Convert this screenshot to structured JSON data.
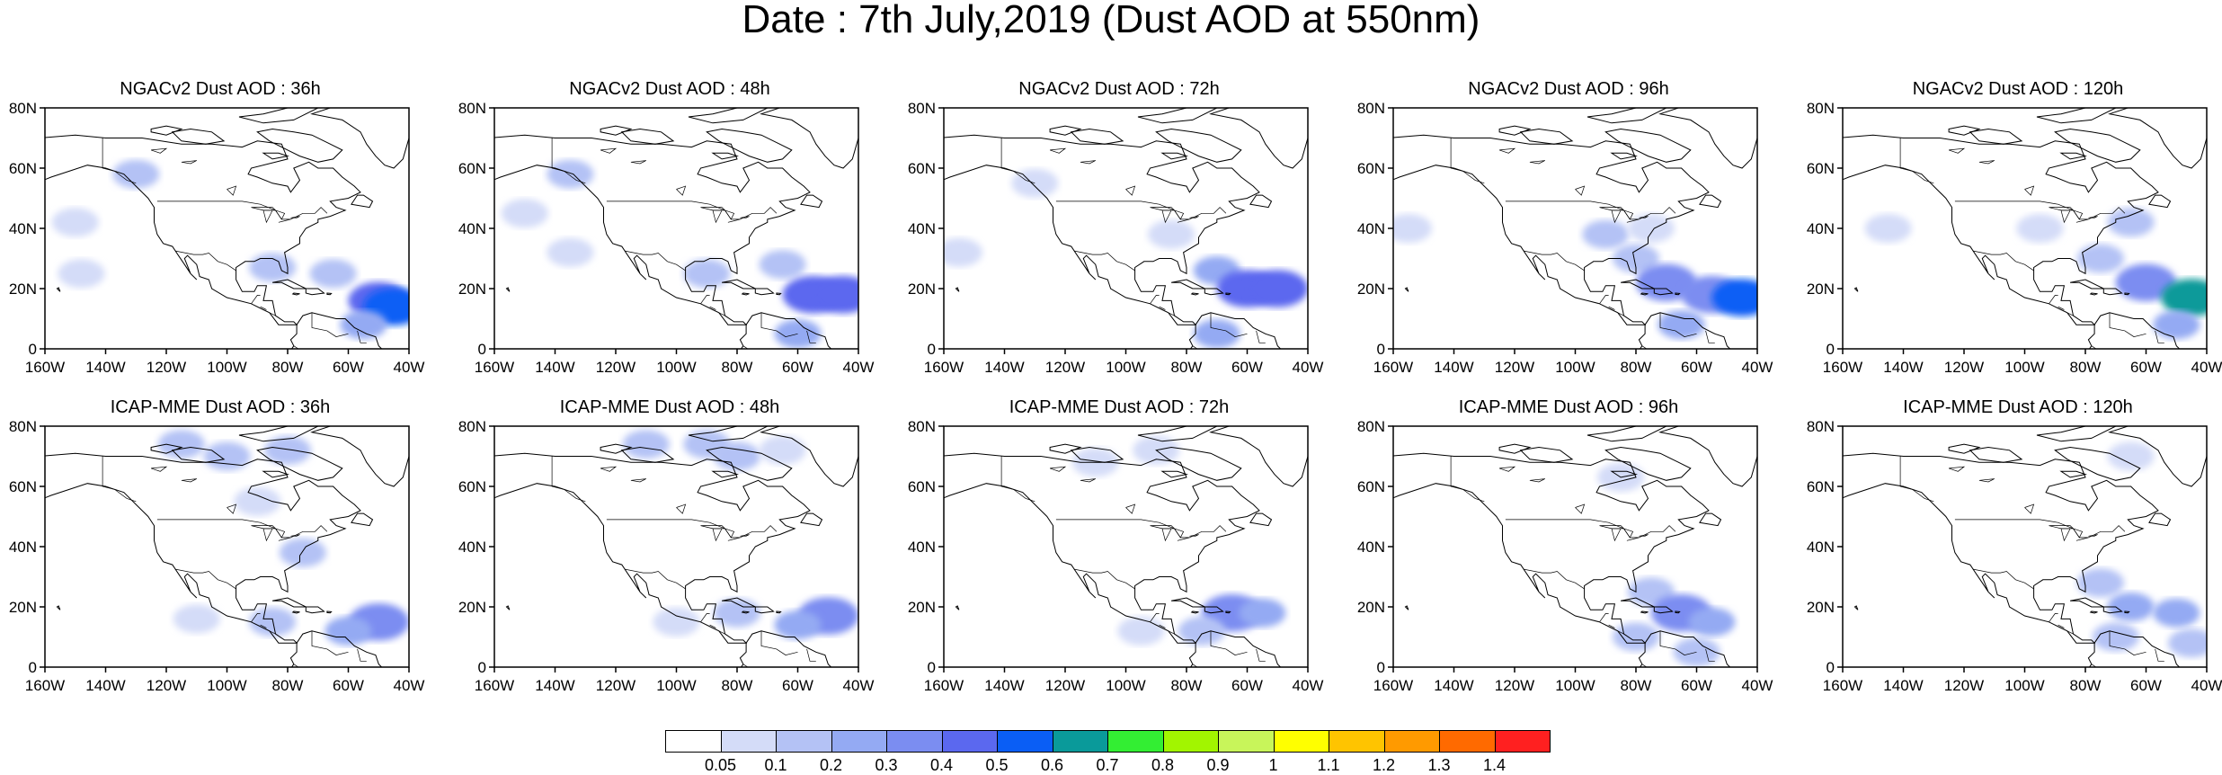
{
  "title": "Date : 7th July,2019 (Dust AOD at 550nm)",
  "panels": [
    {
      "title": "NGACv2 Dust AOD : 36h",
      "plumes": [
        [
          -150,
          42,
          0.08
        ],
        [
          -148,
          25,
          0.06
        ],
        [
          -130,
          58,
          0.12
        ],
        [
          -65,
          25,
          0.15
        ],
        [
          -50,
          16,
          0.4
        ],
        [
          -45,
          14,
          0.5
        ],
        [
          -55,
          8,
          0.2
        ],
        [
          -85,
          27,
          0.1
        ]
      ]
    },
    {
      "title": "NGACv2 Dust AOD : 48h",
      "plumes": [
        [
          -150,
          45,
          0.07
        ],
        [
          -135,
          58,
          0.1
        ],
        [
          -135,
          32,
          0.06
        ],
        [
          -65,
          28,
          0.15
        ],
        [
          -55,
          18,
          0.4
        ],
        [
          -45,
          18,
          0.45
        ],
        [
          -60,
          5,
          0.2
        ],
        [
          -90,
          25,
          0.1
        ]
      ]
    },
    {
      "title": "NGACv2 Dust AOD : 72h",
      "plumes": [
        [
          -155,
          32,
          0.06
        ],
        [
          -130,
          55,
          0.09
        ],
        [
          -85,
          38,
          0.08
        ],
        [
          -70,
          26,
          0.2
        ],
        [
          -60,
          20,
          0.4
        ],
        [
          -50,
          20,
          0.45
        ],
        [
          -70,
          5,
          0.25
        ]
      ]
    },
    {
      "title": "NGACv2 Dust AOD : 96h",
      "plumes": [
        [
          -155,
          40,
          0.05
        ],
        [
          -90,
          38,
          0.1
        ],
        [
          -80,
          30,
          0.12
        ],
        [
          -70,
          22,
          0.3
        ],
        [
          -55,
          18,
          0.35
        ],
        [
          -45,
          17,
          0.55
        ],
        [
          -65,
          8,
          0.2
        ],
        [
          -75,
          40,
          0.08
        ]
      ]
    },
    {
      "title": "NGACv2 Dust AOD : 120h",
      "plumes": [
        [
          -145,
          40,
          0.05
        ],
        [
          -65,
          42,
          0.1
        ],
        [
          -75,
          30,
          0.15
        ],
        [
          -60,
          22,
          0.3
        ],
        [
          -45,
          17,
          0.6
        ],
        [
          -50,
          8,
          0.25
        ],
        [
          -95,
          40,
          0.08
        ]
      ]
    },
    {
      "title": "ICAP-MME Dust AOD : 36h",
      "plumes": [
        [
          -115,
          74,
          0.1
        ],
        [
          -100,
          70,
          0.1
        ],
        [
          -80,
          72,
          0.1
        ],
        [
          -90,
          55,
          0.06
        ],
        [
          -75,
          38,
          0.1
        ],
        [
          -50,
          15,
          0.35
        ],
        [
          -60,
          12,
          0.2
        ],
        [
          -110,
          16,
          0.08
        ],
        [
          -85,
          15,
          0.12
        ]
      ]
    },
    {
      "title": "ICAP-MME Dust AOD : 48h",
      "plumes": [
        [
          -110,
          74,
          0.12
        ],
        [
          -90,
          74,
          0.1
        ],
        [
          -80,
          70,
          0.1
        ],
        [
          -65,
          72,
          0.08
        ],
        [
          -50,
          17,
          0.35
        ],
        [
          -60,
          14,
          0.2
        ],
        [
          -100,
          15,
          0.08
        ],
        [
          -80,
          18,
          0.1
        ]
      ]
    },
    {
      "title": "ICAP-MME Dust AOD : 72h",
      "plumes": [
        [
          -110,
          68,
          0.06
        ],
        [
          -90,
          72,
          0.06
        ],
        [
          -65,
          18,
          0.3
        ],
        [
          -55,
          18,
          0.25
        ],
        [
          -75,
          12,
          0.18
        ],
        [
          -95,
          12,
          0.08
        ]
      ]
    },
    {
      "title": "ICAP-MME Dust AOD : 96h",
      "plumes": [
        [
          -85,
          63,
          0.06
        ],
        [
          -75,
          25,
          0.15
        ],
        [
          -65,
          18,
          0.3
        ],
        [
          -55,
          15,
          0.25
        ],
        [
          -80,
          10,
          0.15
        ],
        [
          -60,
          5,
          0.15
        ]
      ]
    },
    {
      "title": "ICAP-MME Dust AOD : 120h",
      "plumes": [
        [
          -65,
          70,
          0.06
        ],
        [
          -75,
          28,
          0.15
        ],
        [
          -65,
          20,
          0.25
        ],
        [
          -50,
          18,
          0.2
        ],
        [
          -70,
          10,
          0.15
        ],
        [
          -45,
          8,
          0.15
        ]
      ]
    }
  ],
  "y_ticks": [
    "80N",
    "60N",
    "40N",
    "20N",
    "0"
  ],
  "x_ticks": [
    "160W",
    "140W",
    "120W",
    "100W",
    "80W",
    "60W",
    "40W"
  ],
  "colorbar": {
    "labels": [
      "0.05",
      "0.1",
      "0.2",
      "0.3",
      "0.4",
      "0.5",
      "0.6",
      "0.7",
      "0.8",
      "0.9",
      "1",
      "1.1",
      "1.2",
      "1.3",
      "1.4"
    ],
    "colors": [
      "#ffffff",
      "#d4dcf8",
      "#b4c2f5",
      "#94aaf3",
      "#7b8df1",
      "#5b68ef",
      "#0a5ef5",
      "#0a9a9a",
      "#33ee33",
      "#a2f500",
      "#c8f55a",
      "#ffff00",
      "#ffc400",
      "#ff9a00",
      "#ff6a00",
      "#ff2020"
    ]
  }
}
